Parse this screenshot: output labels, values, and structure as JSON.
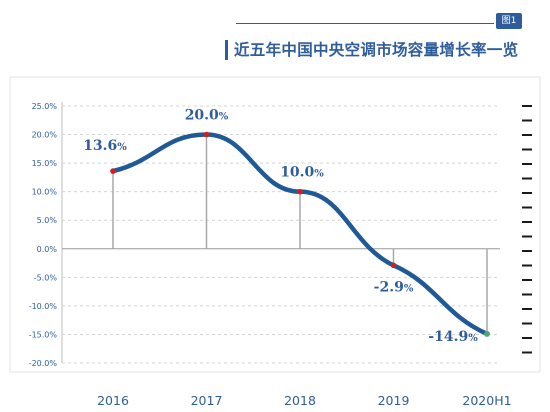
{
  "badge": "图1",
  "chart_data": {
    "type": "line",
    "title": "近五年中国中央空调市场容量增长率一览",
    "x": [
      "2016",
      "2017",
      "2018",
      "2019",
      "2020H1"
    ],
    "series": [
      {
        "values": [
          13.6,
          20.0,
          10.0,
          -2.9,
          -14.9
        ]
      }
    ],
    "data_labels": [
      "13.6%",
      "20.0%",
      "10.0%",
      "-2.9%",
      "-14.9%"
    ],
    "yticks": [
      "25.0%",
      "20.0%",
      "15.0%",
      "10.0%",
      "5.0%",
      "0.0%",
      "-5.0%",
      "-10.0%",
      "-15.0%",
      "-20.0%"
    ],
    "ylim": [
      -20,
      25
    ],
    "grid": "horizontal-dashed",
    "colors": {
      "line": "#1f5a97",
      "marker": "#d11f1f",
      "last_marker": "#4aa87a",
      "label": "#2f5d9b"
    }
  }
}
